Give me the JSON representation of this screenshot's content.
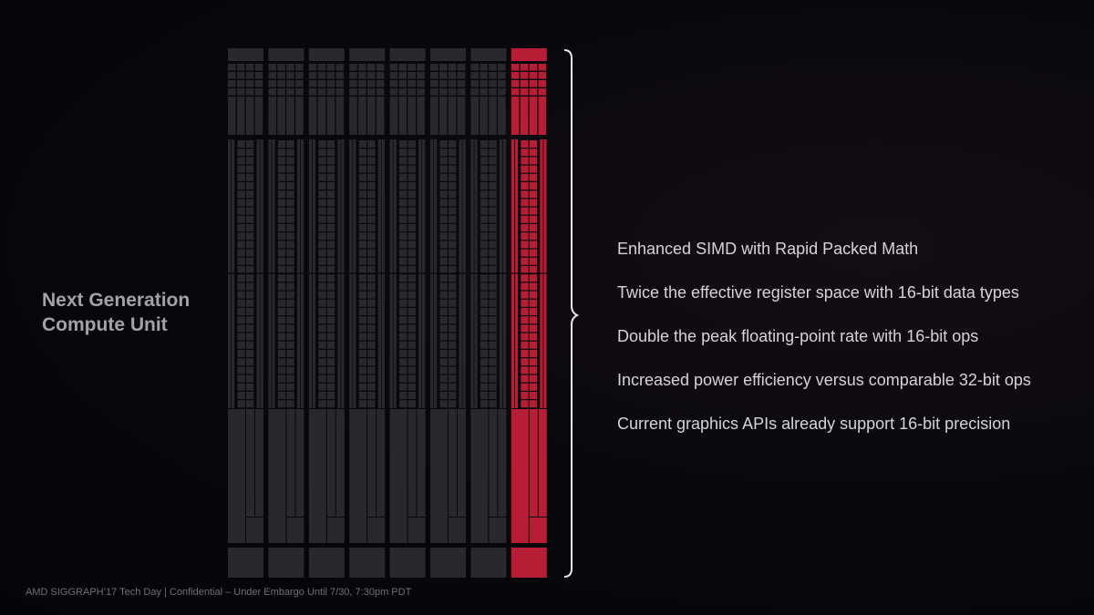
{
  "title_lines": [
    "Next Generation",
    "Compute Unit"
  ],
  "bullets": [
    "Enhanced SIMD with Rapid Packed Math",
    "Twice the effective register space with 16-bit data types",
    "Double the peak floating-point rate with 16-bit ops",
    "Increased power efficiency versus comparable 32-bit ops",
    "Current graphics APIs already support 16-bit precision"
  ],
  "footer": "AMD SIGGRAPH’17 Tech Day | Confidential – Under Embargo Until 7/30, 7:30pm PDT",
  "diagram": {
    "column_count": 8,
    "highlighted_column": 8,
    "colors": {
      "normal": "#2a2b2f",
      "highlight": "#b81d36",
      "background": "#07070c",
      "bracket": "#e6e6e6"
    }
  }
}
